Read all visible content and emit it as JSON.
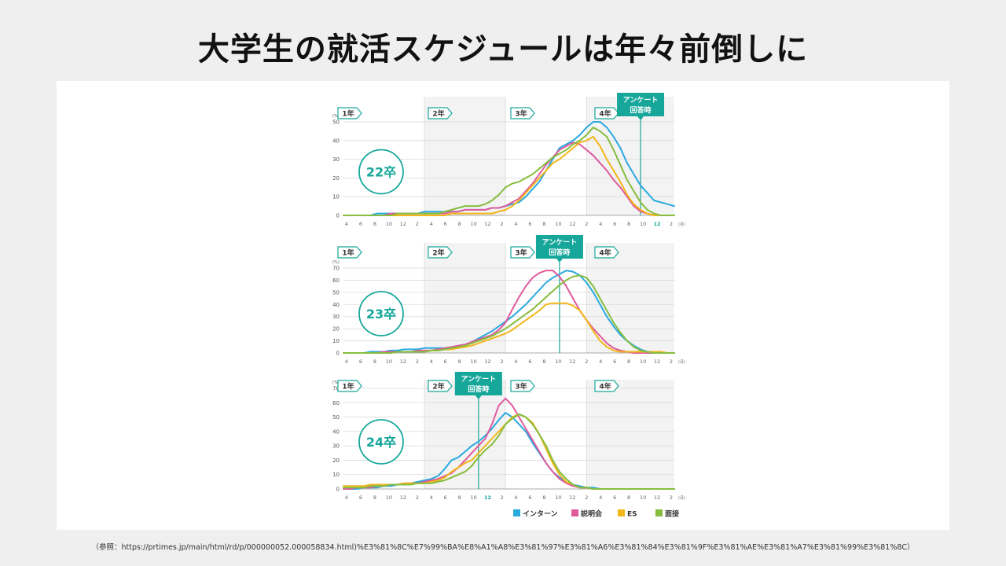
{
  "page": {
    "title": "大学生の就活スケジュールは年々前倒しに",
    "footnote": "（参照：https://prtimes.jp/main/html/rd/p/000000052.000058834.html)%E3%81%8C%E7%99%BA%E8%A1%A8%E3%81%97%E3%81%A6%E3%81%84%E3%81%9F%E3%81%AE%E3%81%A7%E3%81%99%E3%81%8C）"
  },
  "colors": {
    "intern": "#2aa9df",
    "setsumeikai": "#e05a9c",
    "es": "#f2b619",
    "mensetsu": "#86bd3e",
    "teal": "#17a79a",
    "grid": "#d9d9d9",
    "band": "#f3f3f3"
  },
  "legend": {
    "items": [
      {
        "label": "インターン",
        "color": "#2aa9df"
      },
      {
        "label": "説明会",
        "color": "#e05a9c"
      },
      {
        "label": "ES",
        "color": "#f2b619"
      },
      {
        "label": "面接",
        "color": "#86bd3e"
      }
    ]
  },
  "chart_data": [
    {
      "type": "line",
      "badge": "22卒",
      "unit": "(%)",
      "x_unit": "(月)",
      "ylim": [
        0,
        50
      ],
      "yticks": [
        0,
        10,
        20,
        30,
        40,
        50
      ],
      "year_labels": [
        "1年",
        "2年",
        "3年",
        "4年"
      ],
      "x_tick_labels": [
        "4",
        "6",
        "8",
        "10",
        "12",
        "2",
        "4",
        "6",
        "8",
        "10",
        "12",
        "2",
        "4",
        "6",
        "8",
        "10",
        "12",
        "2",
        "4",
        "6",
        "8",
        "10",
        "12",
        "2"
      ],
      "x_highlight": "12",
      "survey_label": [
        "アンケート",
        "回答時"
      ],
      "survey_month_index": 44,
      "series": [
        {
          "name": "インターン",
          "values": [
            0,
            0,
            0,
            0,
            0,
            1,
            1,
            1,
            1,
            1,
            1,
            1,
            2,
            2,
            2,
            2,
            2,
            2,
            3,
            3,
            3,
            3,
            4,
            4,
            5,
            6,
            7,
            10,
            14,
            18,
            24,
            30,
            36,
            38,
            40,
            43,
            47,
            50,
            50,
            47,
            42,
            36,
            28,
            22,
            16,
            12,
            8,
            7,
            6,
            5
          ]
        },
        {
          "name": "説明会",
          "values": [
            0,
            0,
            0,
            0,
            0,
            0,
            0,
            1,
            1,
            1,
            1,
            1,
            1,
            1,
            1,
            1,
            2,
            2,
            3,
            3,
            3,
            3,
            4,
            4,
            5,
            7,
            9,
            13,
            17,
            22,
            27,
            31,
            35,
            37,
            39,
            38,
            35,
            32,
            28,
            24,
            19,
            15,
            10,
            5,
            2,
            1,
            0,
            0,
            0,
            0
          ]
        },
        {
          "name": "ES",
          "values": [
            0,
            0,
            0,
            0,
            0,
            0,
            0,
            0,
            0,
            0,
            0,
            0,
            0,
            0,
            0,
            0,
            1,
            1,
            1,
            1,
            1,
            1,
            1,
            2,
            3,
            5,
            8,
            12,
            16,
            20,
            24,
            28,
            30,
            33,
            36,
            39,
            40,
            42,
            37,
            30,
            24,
            18,
            11,
            6,
            3,
            1,
            0,
            0,
            0,
            0
          ]
        },
        {
          "name": "面接",
          "values": [
            0,
            0,
            0,
            0,
            0,
            0,
            0,
            0,
            1,
            1,
            1,
            1,
            1,
            1,
            1,
            2,
            3,
            4,
            5,
            5,
            5,
            6,
            8,
            11,
            15,
            17,
            18,
            20,
            22,
            25,
            28,
            31,
            33,
            35,
            38,
            40,
            43,
            47,
            45,
            42,
            35,
            27,
            19,
            13,
            7,
            3,
            1,
            0,
            0,
            0
          ]
        }
      ]
    },
    {
      "type": "line",
      "badge": "23卒",
      "unit": "(%)",
      "x_unit": "(月)",
      "ylim": [
        0,
        70
      ],
      "yticks": [
        0,
        10,
        20,
        30,
        40,
        50,
        60,
        70
      ],
      "year_labels": [
        "1年",
        "2年",
        "3年",
        "4年"
      ],
      "x_tick_labels": [
        "4",
        "6",
        "8",
        "10",
        "12",
        "2",
        "4",
        "6",
        "8",
        "10",
        "12",
        "2",
        "4",
        "6",
        "8",
        "10",
        "12",
        "2",
        "4",
        "6",
        "8",
        "10",
        "12",
        "2"
      ],
      "x_highlight": "12",
      "survey_label": [
        "アンケート",
        "回答時"
      ],
      "survey_month_index": 32,
      "series": [
        {
          "name": "インターン",
          "values": [
            0,
            0,
            0,
            0,
            1,
            1,
            1,
            2,
            2,
            3,
            3,
            3,
            4,
            4,
            4,
            4,
            5,
            6,
            7,
            9,
            12,
            15,
            18,
            22,
            26,
            30,
            35,
            40,
            46,
            52,
            58,
            62,
            65,
            68,
            67,
            64,
            58,
            50,
            40,
            30,
            22,
            15,
            10,
            6,
            3,
            1,
            0,
            0,
            0,
            0
          ]
        },
        {
          "name": "説明会",
          "values": [
            0,
            0,
            0,
            0,
            0,
            0,
            1,
            1,
            1,
            1,
            1,
            2,
            2,
            2,
            3,
            4,
            5,
            6,
            7,
            9,
            11,
            13,
            15,
            19,
            25,
            36,
            46,
            55,
            62,
            66,
            68,
            68,
            63,
            55,
            45,
            35,
            27,
            20,
            14,
            8,
            4,
            2,
            1,
            0,
            0,
            0,
            0,
            0,
            0,
            0
          ]
        },
        {
          "name": "ES",
          "values": [
            0,
            0,
            0,
            0,
            0,
            0,
            0,
            0,
            1,
            1,
            1,
            1,
            1,
            2,
            2,
            3,
            3,
            4,
            5,
            6,
            8,
            10,
            12,
            14,
            16,
            19,
            23,
            27,
            31,
            35,
            40,
            41,
            41,
            41,
            39,
            35,
            27,
            18,
            10,
            5,
            2,
            1,
            1,
            1,
            1,
            1,
            1,
            1,
            0,
            0
          ]
        },
        {
          "name": "面接",
          "values": [
            0,
            0,
            0,
            0,
            0,
            0,
            0,
            0,
            1,
            1,
            1,
            1,
            1,
            2,
            2,
            3,
            4,
            5,
            6,
            8,
            10,
            12,
            14,
            17,
            20,
            24,
            28,
            32,
            36,
            41,
            46,
            51,
            56,
            60,
            63,
            64,
            62,
            55,
            45,
            35,
            25,
            17,
            10,
            5,
            2,
            1,
            0,
            0,
            0,
            0
          ]
        }
      ]
    },
    {
      "type": "line",
      "badge": "24卒",
      "unit": "(%)",
      "x_unit": "(月)",
      "ylim": [
        0,
        70
      ],
      "yticks": [
        0,
        10,
        20,
        30,
        40,
        50,
        60,
        70
      ],
      "year_labels": [
        "1年",
        "2年",
        "3年",
        "4年"
      ],
      "x_tick_labels": [
        "4",
        "6",
        "8",
        "10",
        "12",
        "2",
        "4",
        "6",
        "8",
        "10",
        "12",
        "2",
        "4",
        "6",
        "8",
        "10",
        "12",
        "2",
        "4",
        "6",
        "8",
        "10",
        "12",
        "2"
      ],
      "x_highlight": "12",
      "survey_label": [
        "アンケート",
        "回答時"
      ],
      "survey_month_index": 20,
      "series": [
        {
          "name": "インターン",
          "values": [
            0,
            0,
            0,
            1,
            1,
            1,
            2,
            2,
            3,
            3,
            4,
            5,
            6,
            7,
            9,
            14,
            20,
            22,
            26,
            30,
            33,
            37,
            42,
            48,
            53,
            50,
            45,
            40,
            32,
            25,
            18,
            12,
            8,
            5,
            3,
            2,
            1,
            1,
            0,
            0,
            0,
            0,
            0,
            0,
            0,
            0,
            0,
            0,
            0,
            0
          ]
        },
        {
          "name": "説明会",
          "values": [
            0,
            0,
            1,
            1,
            1,
            2,
            2,
            3,
            3,
            4,
            4,
            4,
            5,
            6,
            7,
            9,
            11,
            15,
            20,
            25,
            30,
            35,
            45,
            58,
            63,
            58,
            50,
            42,
            34,
            26,
            18,
            12,
            7,
            4,
            2,
            1,
            1,
            0,
            0,
            0,
            0,
            0,
            0,
            0,
            0,
            0,
            0,
            0,
            0,
            0
          ]
        },
        {
          "name": "ES",
          "values": [
            2,
            2,
            2,
            2,
            3,
            3,
            3,
            3,
            3,
            4,
            4,
            4,
            4,
            5,
            6,
            8,
            12,
            15,
            18,
            20,
            25,
            30,
            35,
            40,
            45,
            50,
            52,
            50,
            46,
            38,
            28,
            18,
            10,
            5,
            3,
            1,
            1,
            0,
            0,
            0,
            0,
            0,
            0,
            0,
            0,
            0,
            0,
            0,
            0,
            0
          ]
        },
        {
          "name": "面接",
          "values": [
            1,
            1,
            1,
            1,
            2,
            2,
            2,
            3,
            3,
            3,
            3,
            4,
            4,
            4,
            5,
            6,
            8,
            10,
            12,
            16,
            22,
            27,
            31,
            37,
            45,
            49,
            52,
            50,
            45,
            38,
            30,
            20,
            12,
            7,
            3,
            1,
            1,
            0,
            0,
            0,
            0,
            0,
            0,
            0,
            0,
            0,
            0,
            0,
            0,
            0
          ]
        }
      ]
    }
  ]
}
